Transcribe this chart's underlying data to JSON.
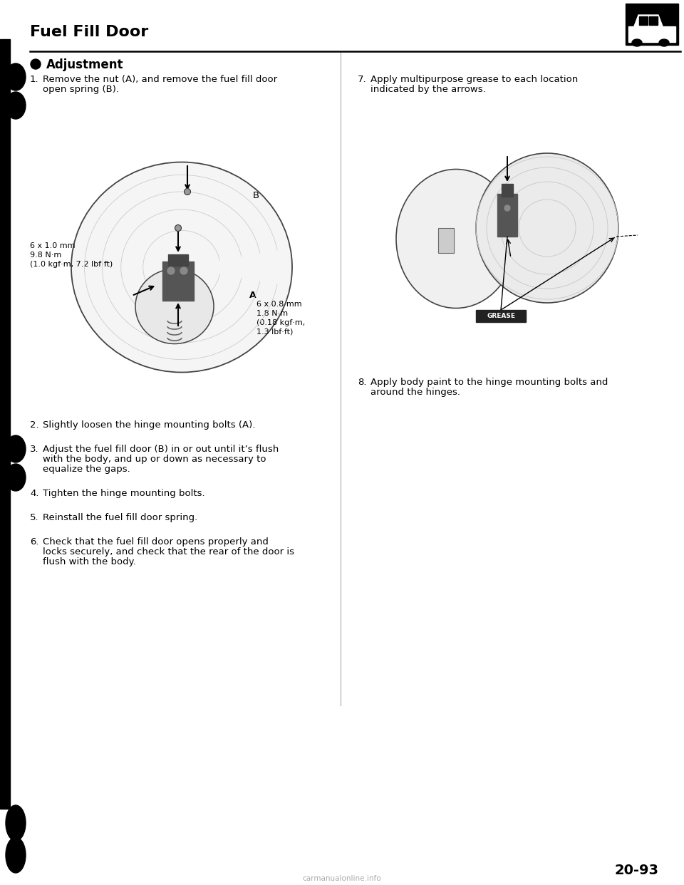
{
  "title": "Fuel Fill Door",
  "section": "Adjustment",
  "bg_color": "#ffffff",
  "text_color": "#000000",
  "page_num": "20-93",
  "steps_left": [
    {
      "num": "1.",
      "text": "Remove the nut (A), and remove the fuel fill door\nopen spring (B)."
    },
    {
      "num": "2.",
      "text": "Slightly loosen the hinge mounting bolts (A)."
    },
    {
      "num": "3.",
      "text": "Adjust the fuel fill door (B) in or out until it’s flush\nwith the body, and up or down as necessary to\nequalize the gaps."
    },
    {
      "num": "4.",
      "text": "Tighten the hinge mounting bolts."
    },
    {
      "num": "5.",
      "text": "Reinstall the fuel fill door spring."
    },
    {
      "num": "6.",
      "text": "Check that the fuel fill door opens properly and\nlocks securely, and check that the rear of the door is\nflush with the body."
    }
  ],
  "steps_right": [
    {
      "num": "7.",
      "text": "Apply multipurpose grease to each location\nindicated by the arrows."
    },
    {
      "num": "8.",
      "text": "Apply body paint to the hinge mounting bolts and\naround the hinges."
    }
  ],
  "ann_bolt_left": "6 x 1.0 mm\n9.8 N·m\n(1.0 kgf·m, 7.2 lbf·ft)",
  "ann_B": "B",
  "ann_A_right": "A\n6 x 0.8 mm\n1.8 N·m\n(0.18 kgf·m,\n1.3 lbf·ft)",
  "watermark": "carmanualonline.info"
}
